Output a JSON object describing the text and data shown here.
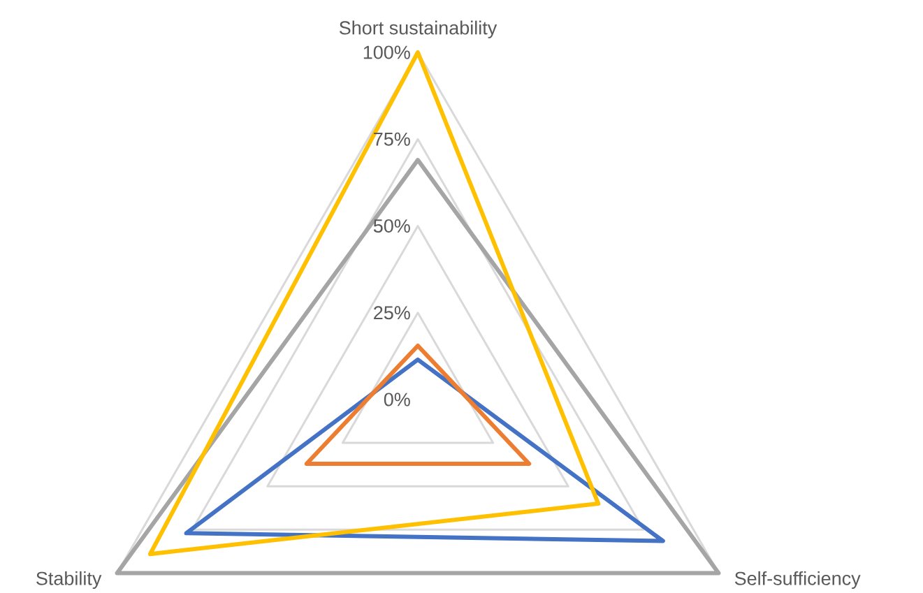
{
  "chart_data": {
    "type": "radar",
    "categories": [
      "Short sustainability",
      "Self-sufficiency",
      "Stability"
    ],
    "series": [
      {
        "color": "#4472c4",
        "values": [
          11.5,
          81.5,
          77
        ]
      },
      {
        "color": "#ed7d31",
        "values": [
          15.5,
          37,
          37
        ]
      },
      {
        "color": "#a5a5a5",
        "values": [
          69,
          100,
          100
        ]
      },
      {
        "color": "#ffc000",
        "values": [
          100,
          60,
          89
        ]
      }
    ],
    "ylim": [
      0,
      100
    ],
    "yticks": [
      {
        "value": 0,
        "label": "0%"
      },
      {
        "value": 25,
        "label": "25%"
      },
      {
        "value": 50,
        "label": "50%"
      },
      {
        "value": 75,
        "label": "75%"
      },
      {
        "value": 100,
        "label": "100%"
      }
    ],
    "grid": true
  }
}
